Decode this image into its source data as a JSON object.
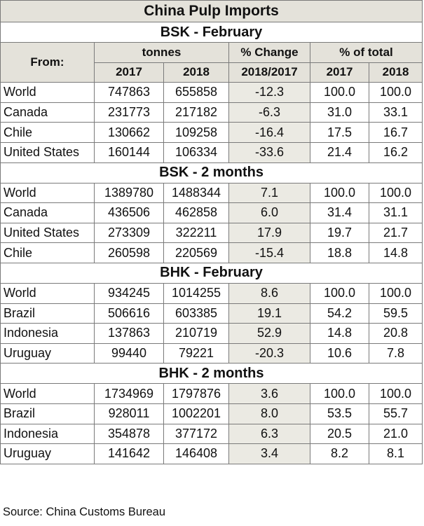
{
  "title": "China Pulp Imports",
  "headers": {
    "from": "From:",
    "tonnes": "tonnes",
    "pct_change": "% Change",
    "pct_total": "% of total",
    "y2017": "2017",
    "y2018": "2018",
    "change_period": "2018/2017"
  },
  "sections": [
    {
      "title": "BSK - February",
      "rows": [
        [
          "World",
          "747863",
          "655858",
          "-12.3",
          "100.0",
          "100.0"
        ],
        [
          "Canada",
          "231773",
          "217182",
          "-6.3",
          "31.0",
          "33.1"
        ],
        [
          "Chile",
          "130662",
          "109258",
          "-16.4",
          "17.5",
          "16.7"
        ],
        [
          "United States",
          "160144",
          "106334",
          "-33.6",
          "21.4",
          "16.2"
        ]
      ]
    },
    {
      "title": "BSK - 2 months",
      "rows": [
        [
          "World",
          "1389780",
          "1488344",
          "7.1",
          "100.0",
          "100.0"
        ],
        [
          "Canada",
          "436506",
          "462858",
          "6.0",
          "31.4",
          "31.1"
        ],
        [
          "United States",
          "273309",
          "322211",
          "17.9",
          "19.7",
          "21.7"
        ],
        [
          "Chile",
          "260598",
          "220569",
          "-15.4",
          "18.8",
          "14.8"
        ]
      ]
    },
    {
      "title": "BHK - February",
      "rows": [
        [
          "World",
          "934245",
          "1014255",
          "8.6",
          "100.0",
          "100.0"
        ],
        [
          "Brazil",
          "506616",
          "603385",
          "19.1",
          "54.2",
          "59.5"
        ],
        [
          "Indonesia",
          "137863",
          "210719",
          "52.9",
          "14.8",
          "20.8"
        ],
        [
          "Uruguay",
          "99440",
          "79221",
          "-20.3",
          "10.6",
          "7.8"
        ]
      ]
    },
    {
      "title": "BHK - 2 months",
      "rows": [
        [
          "World",
          "1734969",
          "1797876",
          "3.6",
          "100.0",
          "100.0"
        ],
        [
          "Brazil",
          "928011",
          "1002201",
          "8.0",
          "53.5",
          "55.7"
        ],
        [
          "Indonesia",
          "354878",
          "377172",
          "6.3",
          "20.5",
          "21.0"
        ],
        [
          "Uruguay",
          "141642",
          "146408",
          "3.4",
          "8.2",
          "8.1"
        ]
      ]
    }
  ],
  "source": "Source: China Customs Bureau"
}
